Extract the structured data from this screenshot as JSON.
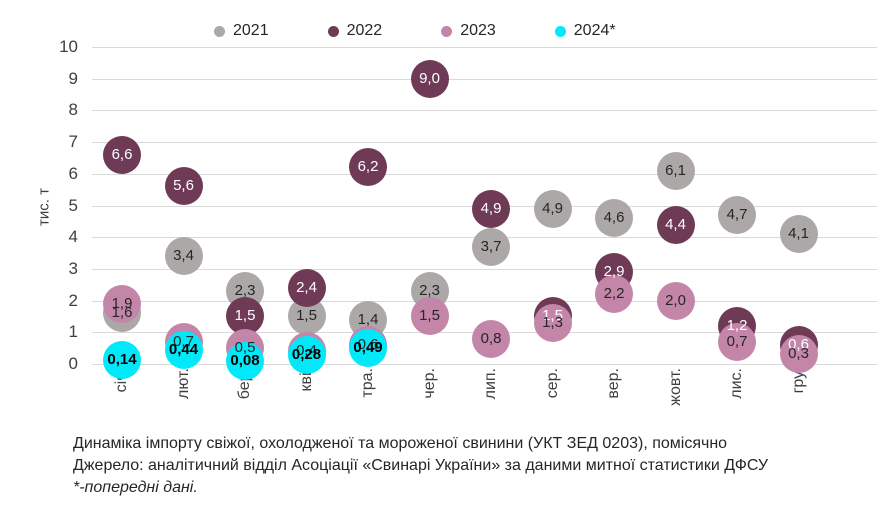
{
  "chart_data": {
    "type": "scatter",
    "title": "Динаміка імпорту свіжої, охолодженої та мороженої свинини (УКТ ЗЕД 0203), помісячно",
    "source": "Джерело: аналітичний відділ Асоціації «Свинарі України» за даними митної статистики ДФСУ",
    "note": "*-попередні дані.",
    "ylabel": "тис. т",
    "ylim": [
      0,
      10
    ],
    "yticks": [
      0,
      1,
      2,
      3,
      4,
      5,
      6,
      7,
      8,
      9,
      10
    ],
    "grid": "horizontal",
    "legend_position": "top",
    "categories": [
      "січ.",
      "лют.",
      "бер.",
      "кві.",
      "тра.",
      "чер.",
      "лип.",
      "сер.",
      "вер.",
      "жовт.",
      "лис.",
      "гру."
    ],
    "series": [
      {
        "name": "2021",
        "color": "#ACA8A8",
        "label_color": "#262626",
        "bold_labels": false,
        "values": [
          1.6,
          3.4,
          2.3,
          1.5,
          1.4,
          2.3,
          3.7,
          4.9,
          4.6,
          6.1,
          4.7,
          4.1
        ],
        "labels": [
          "1,6",
          "3,4",
          "2,3",
          "1,5",
          "1,4",
          "2,3",
          "3,7",
          "4,9",
          "4,6",
          "6,1",
          "4,7",
          "4,1"
        ]
      },
      {
        "name": "2022",
        "color": "#6E3A56",
        "label_color": "#FFFFFF",
        "bold_labels": false,
        "values": [
          6.6,
          5.6,
          1.5,
          2.4,
          6.2,
          9.0,
          4.9,
          1.5,
          2.9,
          4.4,
          1.2,
          0.6
        ],
        "labels": [
          "6,6",
          "5,6",
          "1,5",
          "2,4",
          "6,2",
          "9,0",
          "4,9",
          "1,5",
          "2,9",
          "4,4",
          "1,2",
          "0,6"
        ]
      },
      {
        "name": "2023",
        "color": "#C486A8",
        "label_color": "#262626",
        "bold_labels": false,
        "values": [
          1.9,
          0.7,
          0.5,
          0.4,
          0.6,
          1.5,
          0.8,
          1.3,
          2.2,
          2.0,
          0.7,
          0.3
        ],
        "labels": [
          "1,9",
          "0,7",
          "0,5",
          "0,4",
          "0,6",
          "1,5",
          "0,8",
          "1,3",
          "2,2",
          "2,0",
          "0,7",
          "0,3"
        ]
      },
      {
        "name": "2024*",
        "color": "#00E9F8",
        "label_color": "#000000",
        "bold_labels": true,
        "values": [
          0.14,
          0.44,
          0.08,
          0.28,
          0.49,
          null,
          null,
          null,
          null,
          null,
          null,
          null
        ],
        "labels": [
          "0,14",
          "0,44",
          "0,08",
          "0,28",
          "0,49",
          null,
          null,
          null,
          null,
          null,
          null,
          null
        ]
      }
    ]
  }
}
